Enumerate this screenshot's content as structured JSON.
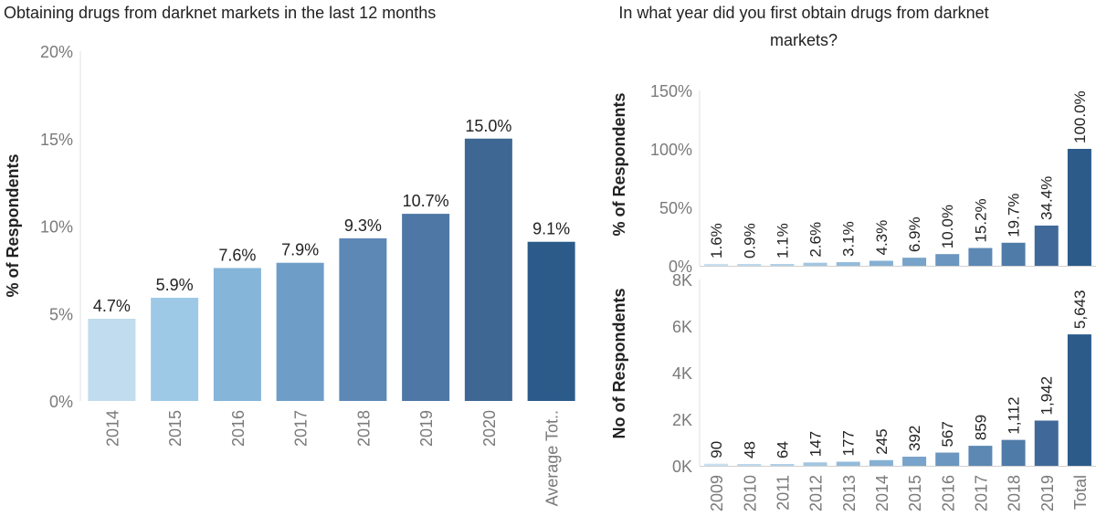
{
  "chart_data": [
    {
      "type": "bar",
      "title": "Obtaining drugs from darknet markets in the last 12 months",
      "ylabel": "% of Respondents",
      "categories": [
        "2014",
        "2015",
        "2016",
        "2017",
        "2018",
        "2019",
        "2020",
        "Average Tot.."
      ],
      "values": [
        4.7,
        5.9,
        7.6,
        7.9,
        9.3,
        10.7,
        15.0,
        9.1
      ],
      "data_labels": [
        "4.7%",
        "5.9%",
        "7.6%",
        "7.9%",
        "9.3%",
        "10.7%",
        "15.0%",
        "9.1%"
      ],
      "ylim": [
        0,
        20
      ],
      "yticks": [
        "0%",
        "5%",
        "10%",
        "15%",
        "20%"
      ],
      "colors": [
        "#c1dcee",
        "#9ec9e6",
        "#85b5d9",
        "#6e9ec8",
        "#5d88b6",
        "#4e77a5",
        "#3e6893",
        "#2c5b8a"
      ]
    },
    {
      "type": "bar",
      "title": "In what year did you first obtain drugs from darknet markets?",
      "ylabel": "% of Respondents",
      "categories": [
        "2009",
        "2010",
        "2011",
        "2012",
        "2013",
        "2014",
        "2015",
        "2016",
        "2017",
        "2018",
        "2019",
        "Total"
      ],
      "values": [
        1.6,
        0.9,
        1.1,
        2.6,
        3.1,
        4.3,
        6.9,
        10.0,
        15.2,
        19.7,
        34.4,
        100.0
      ],
      "data_labels": [
        "1.6%",
        "0.9%",
        "1.1%",
        "2.6%",
        "3.1%",
        "4.3%",
        "6.9%",
        "10.0%",
        "15.2%",
        "19.7%",
        "34.4%",
        "100.0%"
      ],
      "ylim": [
        0,
        150
      ],
      "yticks": [
        "0%",
        "50%",
        "100%",
        "150%"
      ],
      "colors": [
        "#c8e0f0",
        "#bcd8ec",
        "#b0d0e8",
        "#a2c6e2",
        "#93bbdb",
        "#85b0d3",
        "#78a3ca",
        "#6a96bf",
        "#5c88b3",
        "#4f7ba8",
        "#40699a",
        "#2c5b8a"
      ]
    },
    {
      "type": "bar",
      "ylabel": "No of Respondents",
      "categories": [
        "2009",
        "2010",
        "2011",
        "2012",
        "2013",
        "2014",
        "2015",
        "2016",
        "2017",
        "2018",
        "2019",
        "Total"
      ],
      "values": [
        90,
        48,
        64,
        147,
        177,
        245,
        392,
        567,
        859,
        1112,
        1942,
        5643
      ],
      "data_labels": [
        "90",
        "48",
        "64",
        "147",
        "177",
        "245",
        "392",
        "567",
        "859",
        "1,112",
        "1,942",
        "5,643"
      ],
      "ylim": [
        0,
        8000
      ],
      "yticks": [
        "0K",
        "2K",
        "4K",
        "6K",
        "8K"
      ],
      "colors": [
        "#c8e0f0",
        "#bcd8ec",
        "#b0d0e8",
        "#a2c6e2",
        "#93bbdb",
        "#85b0d3",
        "#78a3ca",
        "#6a96bf",
        "#5c88b3",
        "#4f7ba8",
        "#40699a",
        "#2c5b8a"
      ]
    }
  ],
  "right_title_lines": [
    "In what year did you first obtain drugs from darknet",
    "markets?"
  ]
}
